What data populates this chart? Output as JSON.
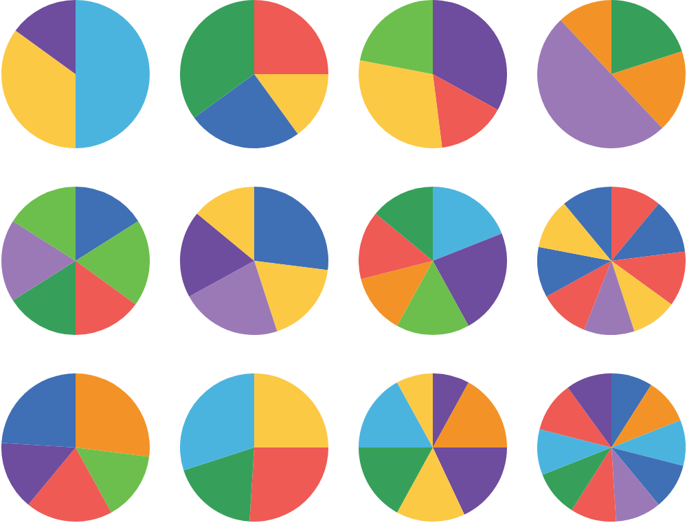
{
  "chart_data": [
    {
      "type": "pie",
      "categories": [
        null,
        null,
        null
      ],
      "values": [
        50,
        35,
        15
      ],
      "colors": [
        "#4bb4de",
        "#fcc945",
        "#6e4c9e"
      ]
    },
    {
      "type": "pie",
      "categories": [
        null,
        null,
        null,
        null
      ],
      "values": [
        25,
        15,
        25,
        35
      ],
      "colors": [
        "#ef5a55",
        "#fcc945",
        "#3f6fb5",
        "#36a05a"
      ]
    },
    {
      "type": "pie",
      "categories": [
        null,
        null,
        null,
        null
      ],
      "values": [
        33,
        15,
        30,
        22
      ],
      "colors": [
        "#6e4c9e",
        "#ef5a55",
        "#fcc945",
        "#6cbf4c"
      ]
    },
    {
      "type": "pie",
      "categories": [
        null,
        null,
        null,
        null
      ],
      "values": [
        20,
        18,
        50,
        12
      ],
      "colors": [
        "#36a05a",
        "#f39327",
        "#9b79b7",
        "#f39327"
      ]
    },
    {
      "type": "pie",
      "categories": [
        null,
        null,
        null,
        null,
        null,
        null
      ],
      "values": [
        16,
        19,
        15,
        16,
        18,
        16
      ],
      "colors": [
        "#3f6fb5",
        "#6cbf4c",
        "#ef5a55",
        "#36a05a",
        "#9b79b7",
        "#6cbf4c"
      ]
    },
    {
      "type": "pie",
      "categories": [
        null,
        null,
        null,
        null,
        null
      ],
      "values": [
        27,
        18,
        22,
        19,
        14
      ],
      "colors": [
        "#3f6fb5",
        "#fcc945",
        "#9b79b7",
        "#6e4c9e",
        "#fcc945"
      ]
    },
    {
      "type": "pie",
      "categories": [
        null,
        null,
        null,
        null,
        null,
        null
      ],
      "values": [
        19,
        23,
        16,
        13,
        15,
        14
      ],
      "colors": [
        "#4bb4de",
        "#6e4c9e",
        "#6cbf4c",
        "#f39327",
        "#ef5a55",
        "#36a05a"
      ]
    },
    {
      "type": "pie",
      "categories": [
        null,
        null,
        null,
        null,
        null,
        null,
        null,
        null,
        null
      ],
      "values": [
        11,
        12,
        12,
        10,
        11,
        11,
        11,
        11,
        11
      ],
      "colors": [
        "#ef5a55",
        "#3f6fb5",
        "#ef5a55",
        "#fcc945",
        "#9b79b7",
        "#ef5a55",
        "#3f6fb5",
        "#fcc945",
        "#3f6fb5"
      ]
    },
    {
      "type": "pie",
      "categories": [
        null,
        null,
        null,
        null,
        null
      ],
      "values": [
        27,
        15,
        19,
        15,
        24
      ],
      "colors": [
        "#f39327",
        "#6cbf4c",
        "#ef5a55",
        "#6e4c9e",
        "#3f6fb5"
      ]
    },
    {
      "type": "pie",
      "categories": [
        null,
        null,
        null,
        null
      ],
      "values": [
        25,
        26,
        19,
        30
      ],
      "colors": [
        "#fcc945",
        "#ef5a55",
        "#36a05a",
        "#4bb4de"
      ]
    },
    {
      "type": "pie",
      "categories": [
        null,
        null,
        null,
        null,
        null,
        null,
        null
      ],
      "values": [
        8,
        17,
        18,
        15,
        17,
        17,
        8
      ],
      "colors": [
        "#6e4c9e",
        "#f39327",
        "#6e4c9e",
        "#fcc945",
        "#36a05a",
        "#4bb4de",
        "#fcc945"
      ]
    },
    {
      "type": "pie",
      "categories": [
        null,
        null,
        null,
        null,
        null,
        null,
        null,
        null,
        null,
        null
      ],
      "values": [
        9,
        10,
        10,
        10,
        10,
        10,
        10,
        10,
        11,
        10
      ],
      "colors": [
        "#3f6fb5",
        "#f39327",
        "#4bb4de",
        "#3f6fb5",
        "#9b79b7",
        "#ef5a55",
        "#36a05a",
        "#4bb4de",
        "#ef5a55",
        "#6e4c9e"
      ]
    }
  ]
}
